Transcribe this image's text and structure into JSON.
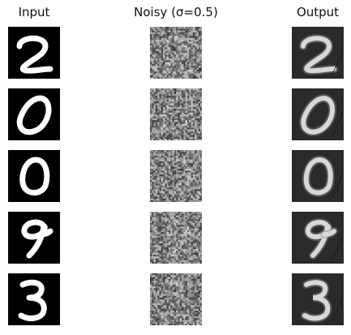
{
  "columns": [
    {
      "id": "input",
      "title": "Input"
    },
    {
      "id": "noisy",
      "title": "Noisy (σ=0.5)"
    },
    {
      "id": "output",
      "title": "Output"
    }
  ],
  "rows": [
    {
      "digit": "2"
    },
    {
      "digit": "0"
    },
    {
      "digit": "0"
    },
    {
      "digit": "9"
    },
    {
      "digit": "3"
    }
  ],
  "noise_sigma": 0.5,
  "colors": {
    "input_bg": "#000000",
    "input_fg": "#ffffff",
    "noisy_base": "#808080",
    "output_bg": "#2a2a2a",
    "output_fg": "#d8d8d8"
  }
}
